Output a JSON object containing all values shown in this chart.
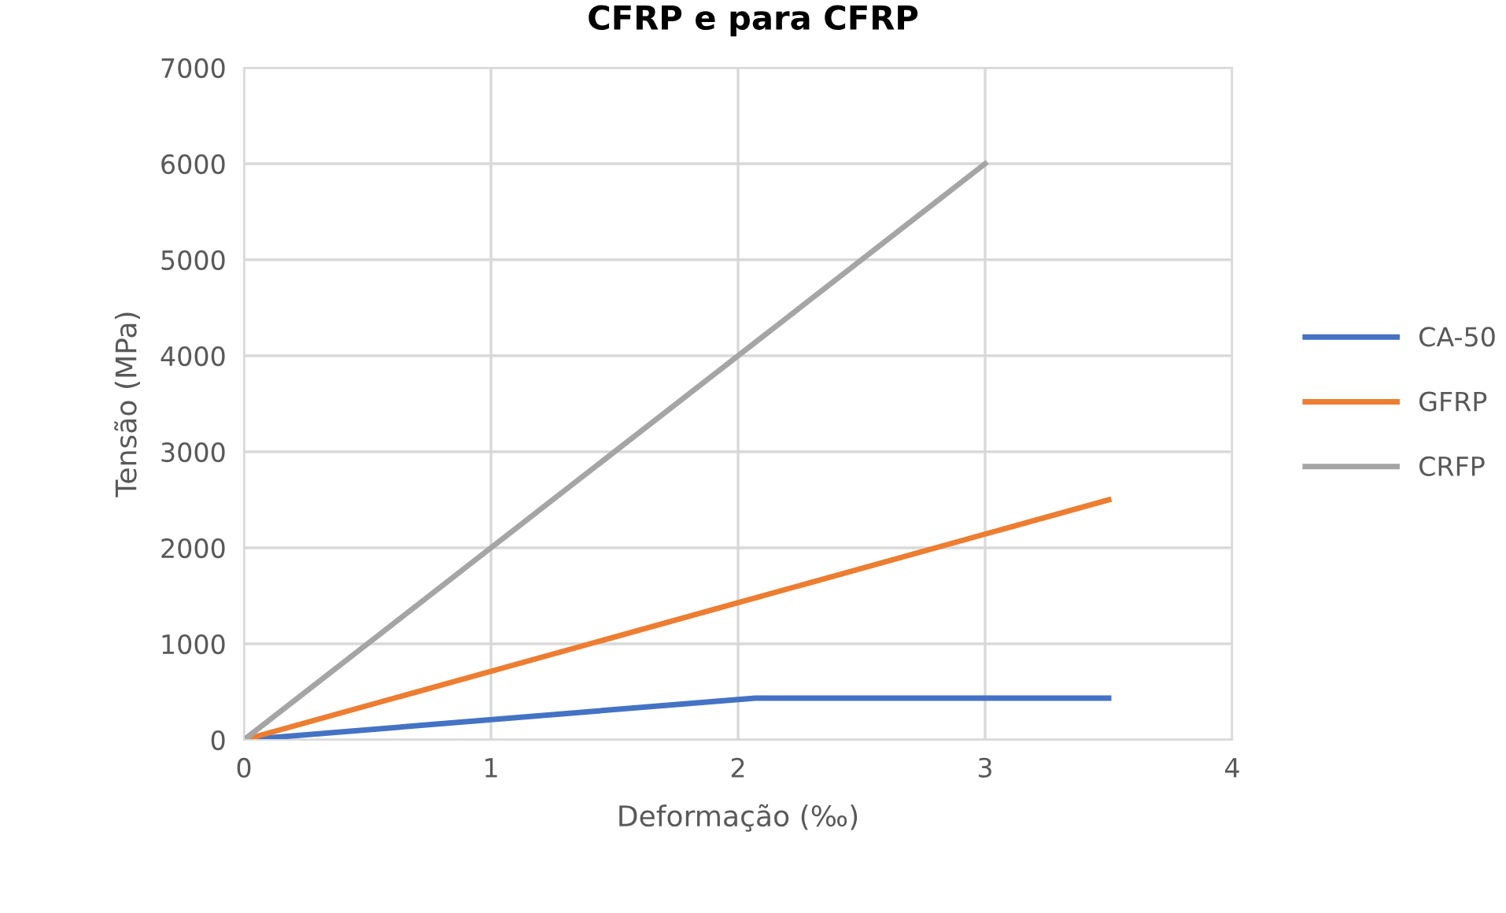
{
  "chart_data": {
    "type": "line",
    "title": "CFRP e para CFRP",
    "xlabel": "Deformação (‰)",
    "ylabel": "Tensão (MPa)",
    "xlim": [
      0,
      4
    ],
    "xticks": [
      0,
      1,
      2,
      3,
      4
    ],
    "ylim": [
      0,
      7000
    ],
    "yticks": [
      0,
      1000,
      2000,
      3000,
      4000,
      5000,
      6000,
      7000
    ],
    "grid": true,
    "legend": "right",
    "marker": "none",
    "line_style": "solid",
    "series": [
      {
        "name": "CA-50",
        "color": "#4472c4",
        "x": [
          0,
          2.07,
          3.5
        ],
        "values": [
          0,
          435,
          435
        ]
      },
      {
        "name": "GFRP",
        "color": "#ed7d31",
        "x": [
          0,
          3.5
        ],
        "values": [
          0,
          2500
        ]
      },
      {
        "name": "CRFP",
        "color": "#a5a5a5",
        "x": [
          0,
          3
        ],
        "values": [
          0,
          6000
        ]
      }
    ]
  }
}
